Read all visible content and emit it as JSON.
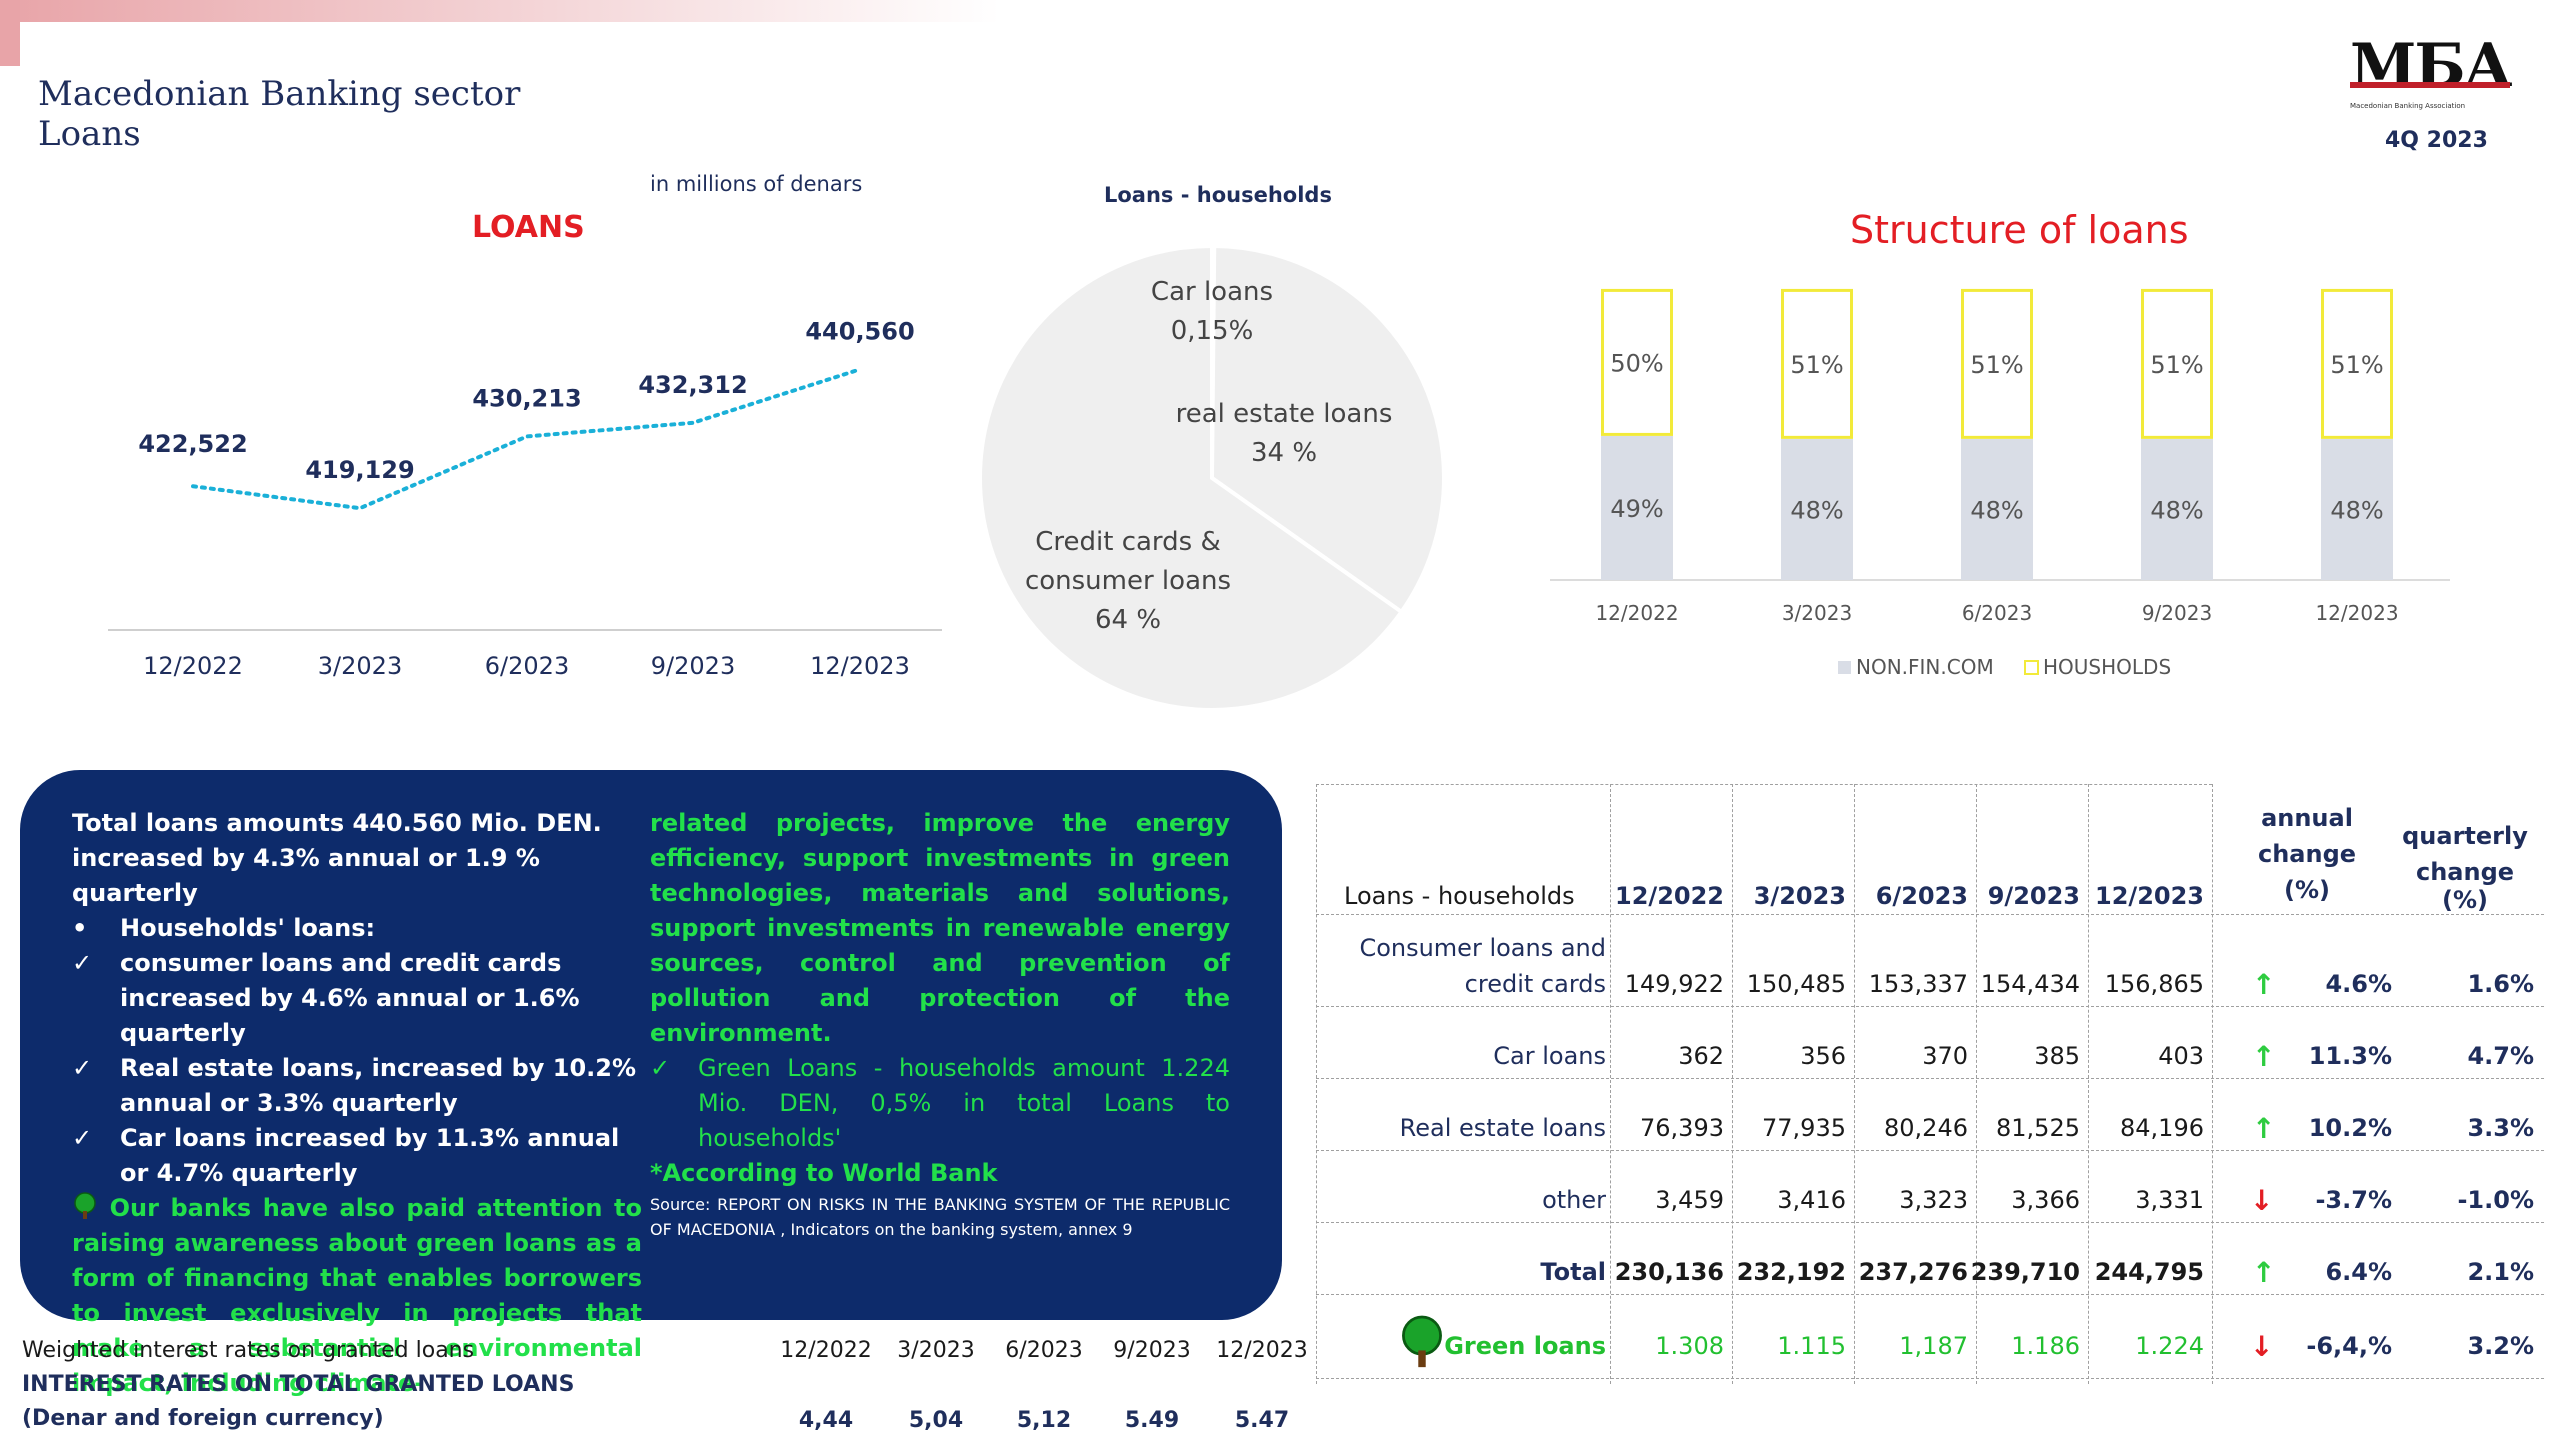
{
  "header": {
    "title_line1": "Macedonian Banking sector",
    "title_line2": "Loans",
    "logo_text": "MБА",
    "logo_subtitle": "Macedonian Banking Association",
    "quarter": "4Q 2023"
  },
  "units_note": "in millions of denars",
  "loans_chart": {
    "title": "LOANS"
  },
  "pie_chart_title": "Loans -  households",
  "structure_chart": {
    "title": "Structure of loans"
  },
  "chart_data": [
    {
      "type": "line",
      "title": "LOANS",
      "categories": [
        "12/2022",
        "3/2023",
        "6/2023",
        "9/2023",
        "12/2023"
      ],
      "series": [
        {
          "values": [
            422522,
            419129,
            430213,
            432312,
            440560
          ]
        }
      ],
      "value_labels": [
        "422,522",
        "419,129",
        "430,213",
        "432,312",
        "440,560"
      ],
      "line_style": "dotted",
      "color": "#1ab0d8"
    },
    {
      "type": "pie",
      "title": "Loans -  households",
      "slices": [
        {
          "label_line1": "Car loans",
          "label_line2": "0,15%",
          "value": 0.15
        },
        {
          "label_line1": "real estate loans",
          "label_line2": "34 %",
          "value": 34
        },
        {
          "label_line1": "Credit cards &",
          "label_line2": "consumer loans",
          "label_line3": "64 %",
          "value": 64
        }
      ],
      "color": "#efefef"
    },
    {
      "type": "bar",
      "stacked": true,
      "title": "Structure of loans",
      "categories": [
        "12/2022",
        "3/2023",
        "6/2023",
        "9/2023",
        "12/2023"
      ],
      "series": [
        {
          "name": "NON.FIN.COM",
          "values": [
            49,
            48,
            48,
            48,
            48
          ],
          "labels": [
            "49%",
            "48%",
            "48%",
            "48%",
            "48%"
          ],
          "color": "#d9dde6"
        },
        {
          "name": "HOUSHOLDS",
          "values": [
            50,
            51,
            51,
            51,
            51
          ],
          "labels": [
            "50%",
            "51%",
            "51%",
            "51%",
            "51%"
          ],
          "color": "#ffffff",
          "border": "#f2ea3a"
        }
      ],
      "legend": "bottom"
    }
  ],
  "info": {
    "line1": "Total loans amounts 440.560 Mio. DEN.",
    "line2": "increased by 4.3% annual or 1.9 % quarterly",
    "households_bullet": "Households' loans:",
    "items": [
      "consumer loans and credit cards increased by 4.6% annual or 1.6% quarterly",
      "Real estate loans, increased by 10.2% annual or 3.3% quarterly",
      "Car loans increased by 11.3% annual or 4.7% quarterly"
    ],
    "green_text_a": "Our banks have also paid attention to raising awareness about green loans as a form of financing that enables borrowers to invest exclusively in projects that make a substantial environmental impact, including climate-",
    "green_text_b": "related projects, improve the energy efficiency, support investments in green technologies, materials and solutions, support investments in renewable energy sources, control and prevention of pollution and protection of the environment.",
    "green_item": "Green Loans -  households amount 1.224 Mio. DEN, 0,5% in total Loans to households'",
    "world_bank": "*According to World Bank",
    "source": "Source: REPORT ON RISKS IN THE BANKING SYSTEM OF THE REPUBLIC OF MACEDONIA , Indicators on the banking system, annex 9"
  },
  "rates": {
    "title": "Weighted interest rates on granted loans",
    "subtitle_line1": "INTEREST RATES ON TOTAL GRANTED LOANS",
    "subtitle_line2": "(Denar and foreign currency)",
    "periods": [
      "12/2022",
      "3/2023",
      "6/2023",
      "9/2023",
      "12/2023"
    ],
    "values": [
      "4,44",
      "5,04",
      "5,12",
      "5.49",
      "5.47"
    ]
  },
  "table": {
    "header_label": "Loans -  households",
    "periods": [
      "12/2022",
      "3/2023",
      "6/2023",
      "9/2023",
      "12/2023"
    ],
    "annual_header": [
      "annual",
      "change",
      "(%)"
    ],
    "quarterly_header": [
      "quarterly",
      "change (%)"
    ],
    "rows": [
      {
        "label_line1": "Consumer loans and",
        "label_line2": "credit cards",
        "values": [
          "149,922",
          "150,485",
          "153,337",
          "154,434",
          "156,865"
        ],
        "trend": "up",
        "annual": "4.6%",
        "quarterly": "1.6%"
      },
      {
        "label_line1": "",
        "label_line2": "Car loans",
        "values": [
          "362",
          "356",
          "370",
          "385",
          "403"
        ],
        "trend": "up",
        "annual": "11.3%",
        "quarterly": "4.7%"
      },
      {
        "label_line1": "",
        "label_line2": "Real estate loans",
        "values": [
          "76,393",
          "77,935",
          "80,246",
          "81,525",
          "84,196"
        ],
        "trend": "up",
        "annual": "10.2%",
        "quarterly": "3.3%"
      },
      {
        "label_line1": "",
        "label_line2": "other",
        "values": [
          "3,459",
          "3,416",
          "3,323",
          "3,366",
          "3,331"
        ],
        "trend": "down",
        "annual": "-3.7%",
        "quarterly": "-1.0%"
      },
      {
        "label_line1": "",
        "label_line2": "Total",
        "values": [
          "230,136",
          "232,192",
          "237,276",
          "239,710",
          "244,795"
        ],
        "trend": "up",
        "annual": "6.4%",
        "quarterly": "2.1%"
      },
      {
        "label_line1": "",
        "label_line2": "Green loans",
        "values": [
          "1.308",
          "1.115",
          "1,187",
          "1.186",
          "1.224"
        ],
        "trend": "down",
        "annual": "-6,4,%",
        "quarterly": "3.2%"
      }
    ]
  },
  "colors": {
    "navy": "#0d2b6b",
    "red": "#e31e24",
    "green": "#22e04a",
    "line": "#1ab0d8",
    "up_arrow": "#2ecc40",
    "down_arrow": "#e31e24"
  }
}
